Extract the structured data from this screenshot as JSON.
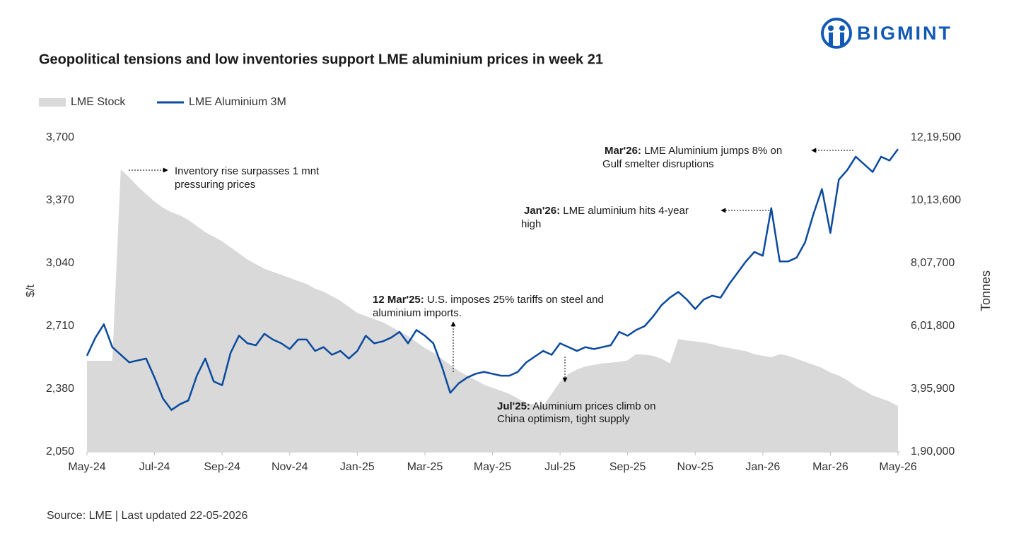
{
  "brand": "BIGMINT",
  "source": "Source: LME | Last updated 22-05-2026",
  "chart_data": {
    "type": "line",
    "title": "Geopolitical tensions and low inventories support LME aluminium prices in week 21",
    "y_label": "$/t",
    "y2_label": "Tonnes",
    "categories": [
      "May-24",
      null,
      null,
      null,
      null,
      null,
      null,
      null,
      "Jul-24",
      null,
      null,
      null,
      null,
      null,
      null,
      null,
      "Sep-24",
      null,
      null,
      null,
      null,
      null,
      null,
      null,
      "Nov-24",
      null,
      null,
      null,
      null,
      null,
      null,
      null,
      "Jan-25",
      null,
      null,
      null,
      null,
      null,
      null,
      null,
      "Mar-25",
      null,
      null,
      null,
      null,
      null,
      null,
      null,
      "May-25",
      null,
      null,
      null,
      null,
      null,
      null,
      null,
      "Jul-25",
      null,
      null,
      null,
      null,
      null,
      null,
      null,
      "Sep-25",
      null,
      null,
      null,
      null,
      null,
      null,
      null,
      "Nov-25",
      null,
      null,
      null,
      null,
      null,
      null,
      null,
      "Jan-26",
      null,
      null,
      null,
      null,
      null,
      null,
      null,
      "Mar-26",
      null,
      null,
      null,
      null,
      null,
      null,
      null,
      "May-26"
    ],
    "series": [
      {
        "name": "LME Stock",
        "type": "area",
        "axis": "y2",
        "color": "#d9d9d9",
        "values": [
          488500,
          488500,
          488500,
          488500,
          1115000,
          1090000,
          1060000,
          1035000,
          1010000,
          990000,
          975000,
          965000,
          950000,
          930000,
          910000,
          895000,
          880000,
          860000,
          840000,
          820000,
          805000,
          790000,
          780000,
          770000,
          760000,
          750000,
          740000,
          725000,
          715000,
          700000,
          685000,
          665000,
          645000,
          635000,
          625000,
          615000,
          600000,
          585000,
          570000,
          550000,
          530000,
          515000,
          495000,
          475000,
          455000,
          440000,
          425000,
          410000,
          400000,
          390000,
          380000,
          365000,
          350000,
          345000,
          340000,
          380000,
          420000,
          445000,
          460000,
          470000,
          475000,
          480000,
          482000,
          485000,
          490000,
          510000,
          508000,
          505000,
          495000,
          480000,
          560000,
          555000,
          552000,
          548000,
          543000,
          535000,
          530000,
          525000,
          520000,
          510000,
          505000,
          500000,
          510000,
          505000,
          495000,
          485000,
          475000,
          465000,
          450000,
          440000,
          425000,
          405000,
          390000,
          375000,
          365000,
          355000,
          340000
        ]
      },
      {
        "name": "LME Aluminium 3M",
        "type": "line",
        "axis": "y",
        "color": "#0b4a9e",
        "values": [
          2555,
          2650,
          2720,
          2600,
          2560,
          2520,
          2530,
          2540,
          2440,
          2330,
          2270,
          2300,
          2320,
          2450,
          2540,
          2420,
          2400,
          2570,
          2660,
          2620,
          2610,
          2670,
          2640,
          2620,
          2590,
          2640,
          2640,
          2580,
          2600,
          2560,
          2580,
          2540,
          2580,
          2660,
          2620,
          2630,
          2650,
          2680,
          2620,
          2690,
          2660,
          2620,
          2500,
          2360,
          2410,
          2440,
          2460,
          2470,
          2460,
          2450,
          2450,
          2470,
          2520,
          2550,
          2580,
          2560,
          2620,
          2600,
          2580,
          2600,
          2590,
          2600,
          2610,
          2680,
          2660,
          2690,
          2710,
          2760,
          2820,
          2860,
          2890,
          2850,
          2800,
          2850,
          2870,
          2860,
          2930,
          2990,
          3050,
          3100,
          3080,
          3330,
          3050,
          3050,
          3070,
          3150,
          3300,
          3430,
          3200,
          3480,
          3530,
          3600,
          3560,
          3520,
          3600,
          3580,
          3640
        ]
      }
    ],
    "ylim": [
      2050,
      3700
    ],
    "yticks": [
      {
        "value": 2050,
        "label": "2,050"
      },
      {
        "value": 2380,
        "label": "2,380"
      },
      {
        "value": 2710,
        "label": "2,710"
      },
      {
        "value": 3040,
        "label": "3,040"
      },
      {
        "value": 3370,
        "label": "3,370"
      },
      {
        "value": 3700,
        "label": "3,700"
      }
    ],
    "y2lim": [
      190000,
      1219500
    ],
    "y2ticks": [
      {
        "value": 190000,
        "label": "1,90,000"
      },
      {
        "value": 395900,
        "label": "3,95,900"
      },
      {
        "value": 601800,
        "label": "6,01,800"
      },
      {
        "value": 807700,
        "label": "8,07,700"
      },
      {
        "value": 1013600,
        "label": "10,13,600"
      },
      {
        "value": 1219500,
        "label": "12,19,500"
      }
    ],
    "grid": false,
    "legend": "top-left",
    "annotations": [
      {
        "lines": [
          "Inventory rise surpasses 1 mnt",
          "pressuring prices"
        ]
      },
      {
        "label": "Mar'26:",
        "lines": [
          "LME Aluminium jumps 8% on",
          "Gulf smelter disruptions"
        ]
      },
      {
        "label": "Jan'26:",
        "lines": [
          "LME aluminium hits 4-year",
          "high"
        ]
      },
      {
        "label": "12 Mar'25:",
        "lines": [
          "U.S. imposes 25% tariffs on steel and",
          "aluminium imports."
        ]
      },
      {
        "label": "Jul'25:",
        "lines": [
          "Aluminium prices climb on",
          "China optimism, tight supply"
        ]
      }
    ]
  }
}
